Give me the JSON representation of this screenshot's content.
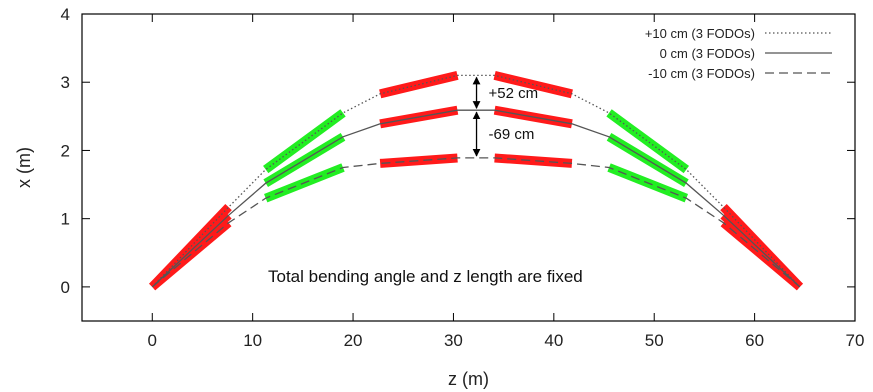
{
  "chart_data": {
    "type": "line",
    "title": "",
    "xlabel": "z (m)",
    "ylabel": "x (m)",
    "xlim": [
      -7,
      70
    ],
    "ylim": [
      -0.5,
      4
    ],
    "xticks": [
      0,
      10,
      20,
      30,
      40,
      50,
      60,
      70
    ],
    "yticks": [
      0,
      1,
      2,
      3,
      4
    ],
    "grid": false,
    "legend_position": "top-right",
    "series": [
      {
        "name": "+10 cm (3 FODOs)",
        "style": "dotted",
        "color": "#555555",
        "x": [
          0,
          7.6,
          11.3,
          19.0,
          22.7,
          30.4,
          34.1,
          41.8,
          45.5,
          53.2,
          56.9,
          64.5
        ],
        "y": [
          0,
          1.17,
          1.72,
          2.55,
          2.83,
          3.1,
          3.1,
          2.83,
          2.55,
          1.72,
          1.17,
          0
        ]
      },
      {
        "name": "0 cm (3 FODOs)",
        "style": "solid",
        "color": "#555555",
        "x": [
          0,
          7.6,
          11.3,
          19.0,
          22.7,
          30.4,
          34.1,
          41.8,
          45.5,
          53.2,
          56.9,
          64.5
        ],
        "y": [
          0,
          1.05,
          1.52,
          2.2,
          2.39,
          2.59,
          2.59,
          2.39,
          2.2,
          1.52,
          1.05,
          0
        ]
      },
      {
        "name": "-10 cm (3 FODOs)",
        "style": "dashed",
        "color": "#555555",
        "x": [
          0,
          7.6,
          11.3,
          19.0,
          22.7,
          30.4,
          34.1,
          41.8,
          45.5,
          53.2,
          56.9,
          64.5
        ],
        "y": [
          0,
          0.94,
          1.3,
          1.75,
          1.81,
          1.89,
          1.89,
          1.81,
          1.75,
          1.3,
          0.94,
          0
        ]
      }
    ],
    "magnet_segments": [
      {
        "color": "#ff1a1a",
        "z1": 0,
        "x1": 0,
        "z2": 7.6,
        "x2": 1.17
      },
      {
        "color": "#ff1a1a",
        "z1": 0,
        "x1": 0,
        "z2": 7.6,
        "x2": 1.05
      },
      {
        "color": "#ff1a1a",
        "z1": 0,
        "x1": 0,
        "z2": 7.6,
        "x2": 0.94
      },
      {
        "color": "#22ee22",
        "z1": 11.3,
        "x1": 1.72,
        "z2": 19.0,
        "x2": 2.55
      },
      {
        "color": "#22ee22",
        "z1": 11.3,
        "x1": 1.52,
        "z2": 19.0,
        "x2": 2.2
      },
      {
        "color": "#22ee22",
        "z1": 11.3,
        "x1": 1.3,
        "z2": 19.0,
        "x2": 1.75
      },
      {
        "color": "#ff1a1a",
        "z1": 22.7,
        "x1": 2.83,
        "z2": 30.4,
        "x2": 3.1
      },
      {
        "color": "#ff1a1a",
        "z1": 22.7,
        "x1": 2.39,
        "z2": 30.4,
        "x2": 2.59
      },
      {
        "color": "#ff1a1a",
        "z1": 22.7,
        "x1": 1.81,
        "z2": 30.4,
        "x2": 1.89
      },
      {
        "color": "#ff1a1a",
        "z1": 34.1,
        "x1": 3.1,
        "z2": 41.8,
        "x2": 2.83
      },
      {
        "color": "#ff1a1a",
        "z1": 34.1,
        "x1": 2.59,
        "z2": 41.8,
        "x2": 2.39
      },
      {
        "color": "#ff1a1a",
        "z1": 34.1,
        "x1": 1.89,
        "z2": 41.8,
        "x2": 1.81
      },
      {
        "color": "#22ee22",
        "z1": 45.5,
        "x1": 2.55,
        "z2": 53.2,
        "x2": 1.72
      },
      {
        "color": "#22ee22",
        "z1": 45.5,
        "x1": 2.2,
        "z2": 53.2,
        "x2": 1.52
      },
      {
        "color": "#22ee22",
        "z1": 45.5,
        "x1": 1.75,
        "z2": 53.2,
        "x2": 1.3
      },
      {
        "color": "#ff1a1a",
        "z1": 56.9,
        "x1": 1.17,
        "z2": 64.5,
        "x2": 0
      },
      {
        "color": "#ff1a1a",
        "z1": 56.9,
        "x1": 1.05,
        "z2": 64.5,
        "x2": 0
      },
      {
        "color": "#ff1a1a",
        "z1": 56.9,
        "x1": 0.94,
        "z2": 64.5,
        "x2": 0
      }
    ],
    "annotations": [
      {
        "text": "+52 cm",
        "z": 32.3,
        "x_from": 2.59,
        "x_to": 3.1
      },
      {
        "text": "-69 cm",
        "z": 32.3,
        "x_from": 1.89,
        "x_to": 2.59
      }
    ],
    "note": "Total bending angle and z length are fixed"
  }
}
